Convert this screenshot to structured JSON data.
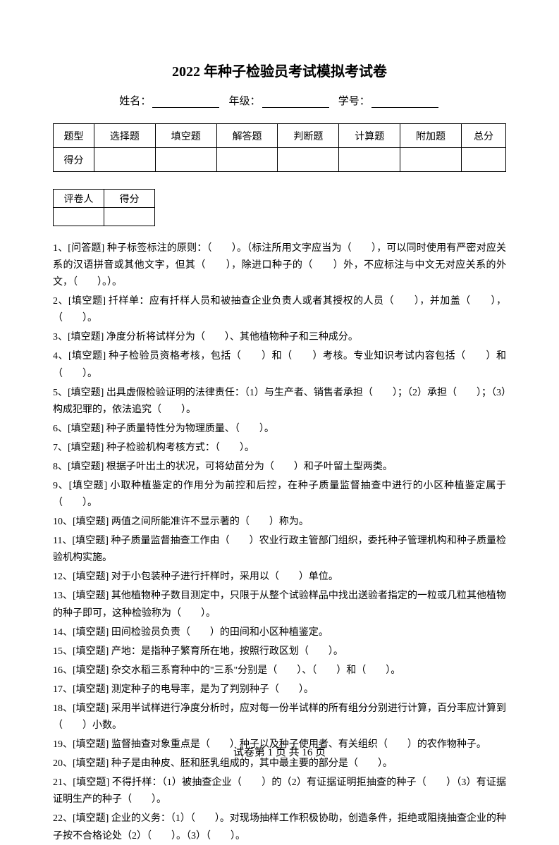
{
  "title": "2022 年种子检验员考试模拟考试卷",
  "info": {
    "name_label": "姓名：",
    "grade_label": "年级：",
    "id_label": "学号："
  },
  "main_table": {
    "row1": [
      "题型",
      "选择题",
      "填空题",
      "解答题",
      "判断题",
      "计算题",
      "附加题",
      "总分"
    ],
    "row2_label": "得分"
  },
  "small_table": {
    "h1": "评卷人",
    "h2": "得分"
  },
  "questions": [
    "1、[问答题] 种子标签标注的原则：（　　）。（标注所用文字应当为（　　），可以同时使用有严密对应关系的汉语拼音或其他文字，但其（　　），除进口种子的（　　）外，不应标注与中文无对应关系的外文，（　　）。）。",
    "2、[填空题] 扦样单：应有扦样人员和被抽查企业负责人或者其授权的人员（　　），并加盖（　　），（　　）。",
    "3、[填空题] 净度分析将试样分为（　　）、其他植物种子和三种成分。",
    "4、[填空题] 种子检验员资格考核，包括（　　）和（　　）考核。专业知识考试内容包括（　　）和（　　）。",
    "5、[填空题] 出具虚假检验证明的法律责任：（1）与生产者、销售者承担（　　）；（2）承担（　　）；（3）构成犯罪的，依法追究（　　）。",
    "6、[填空题] 种子质量特性分为物理质量、（　　）。",
    "7、[填空题] 种子检验机构考核方式：（　　）。",
    "8、[填空题] 根据子叶出土的状况，可将幼苗分为（　　）和子叶留土型两类。",
    "9、[填空题] 小取种植鉴定的作用分为前控和后控，在种子质量监督抽查中进行的小区种植鉴定属于（　　）。",
    "10、[填空题] 两值之间所能准许不显示著的（　　）称为。",
    "11、[填空题] 种子质量监督抽查工作由（　　）农业行政主管部门组织，委托种子管理机构和种子质量检验机构实施。",
    "12、[填空题] 对于小包装种子进行扦样时，采用以（　　）单位。",
    "13、[填空题] 其他植物种子数目测定中，只限于从整个试验样品中找出送验者指定的一粒或几粒其他植物的种子即可，这种检验称为（　　）。",
    "14、[填空题] 田间检验员负责（　　）的田间和小区种植鉴定。",
    "15、[填空题] 产地：是指种子繁育所在地，按照行政区划（　　）。",
    "16、[填空题] 杂交水稻三系育种中的\"三系\"分别是（　　）、（　　）和（　　）。",
    "17、[填空题] 测定种子的电导率，是为了判别种子（　　）。",
    "18、[填空题] 采用半试样进行净度分析时，应对每一份半试样的所有组分分别进行计算，百分率应计算到（　　）小数。",
    "19、[填空题] 监督抽查对象重点是（　　）种子以及种子使用者、有关组织（　　）的农作物种子。",
    "20、[填空题] 种子是由种皮、胚和胚乳组成的，其中最主要的部分是（　　）。",
    "21、[填空题] 不得扦样：（1）被抽查企业（　　）的（2）有证据证明拒抽查的种子（　　）（3）有证据证明生产的种子（　　）。",
    "22、[填空题] 企业的义务：（1）（　　）。对现场抽样工作积极协助，创造条件，拒绝或阻挠抽查企业的种子按不合格论处（2）（　　）。（3）（　　）。"
  ],
  "footer": "试卷第 1 页 共 16 页"
}
